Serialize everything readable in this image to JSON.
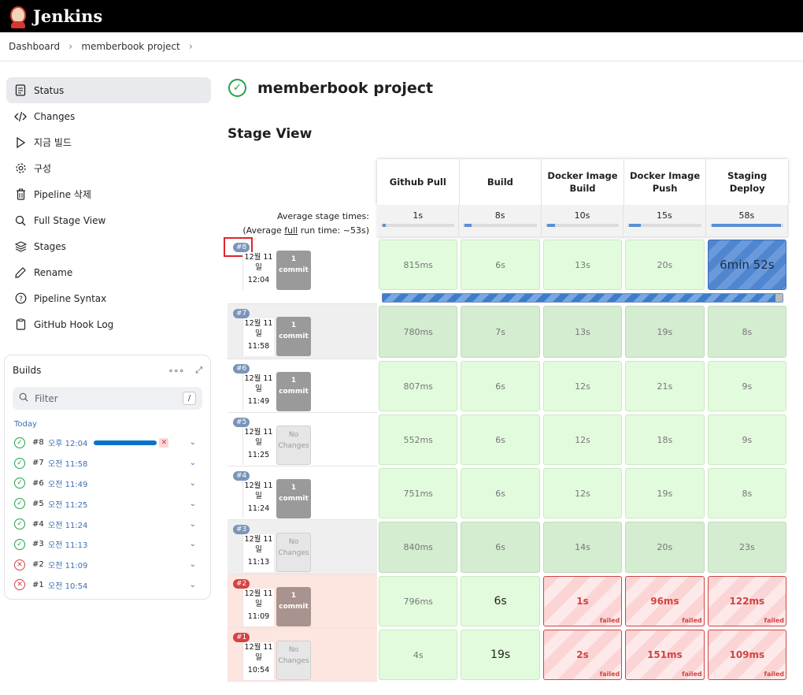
{
  "header": {
    "brand": "Jenkins"
  },
  "breadcrumb": [
    "Dashboard",
    "memberbook project"
  ],
  "sidebar": {
    "items": [
      {
        "label": "Status",
        "icon": "document-icon"
      },
      {
        "label": "Changes",
        "icon": "code-icon"
      },
      {
        "label": "지금 빌드",
        "icon": "play-icon"
      },
      {
        "label": "구성",
        "icon": "gear-icon"
      },
      {
        "label": "Pipeline 삭제",
        "icon": "trash-icon"
      },
      {
        "label": "Full Stage View",
        "icon": "search-icon"
      },
      {
        "label": "Stages",
        "icon": "layers-icon"
      },
      {
        "label": "Rename",
        "icon": "pencil-icon"
      },
      {
        "label": "Pipeline Syntax",
        "icon": "help-icon"
      },
      {
        "label": "GitHub Hook Log",
        "icon": "clipboard-icon"
      }
    ]
  },
  "builds": {
    "title": "Builds",
    "filter_placeholder": "Filter",
    "filter_shortcut": "/",
    "group": "Today",
    "items": [
      {
        "num": "#8",
        "time": "오후 12:04",
        "status": "running"
      },
      {
        "num": "#7",
        "time": "오전 11:58",
        "status": "success"
      },
      {
        "num": "#6",
        "time": "오전 11:49",
        "status": "success"
      },
      {
        "num": "#5",
        "time": "오전 11:25",
        "status": "success"
      },
      {
        "num": "#4",
        "time": "오전 11:24",
        "status": "success"
      },
      {
        "num": "#3",
        "time": "오전 11:13",
        "status": "success"
      },
      {
        "num": "#2",
        "time": "오전 11:09",
        "status": "failed"
      },
      {
        "num": "#1",
        "time": "오전 10:54",
        "status": "failed"
      }
    ]
  },
  "main": {
    "title": "memberbook project",
    "stage_view_title": "Stage View",
    "avg_label_1": "Average stage times:",
    "avg_label_2a": "(Average ",
    "avg_label_2b": "full",
    "avg_label_2c": " run time: ~53s)",
    "stages": [
      {
        "name_1": "Github Pull",
        "name_2": "",
        "avg": "1s",
        "avg_fill": 0.02
      },
      {
        "name_1": "Build",
        "name_2": "",
        "avg": "8s",
        "avg_fill": 0.09
      },
      {
        "name_1": "Docker Image",
        "name_2": "Build",
        "avg": "10s",
        "avg_fill": 0.11
      },
      {
        "name_1": "Docker Image",
        "name_2": "Push",
        "avg": "15s",
        "avg_fill": 0.16
      },
      {
        "name_1": "Staging",
        "name_2": "Deploy",
        "avg": "58s",
        "avg_fill": 0.95
      }
    ],
    "runs": [
      {
        "id": "#8",
        "date_1": "12월 11",
        "date_2": "일",
        "time": "12:04",
        "commit_1": "1",
        "commit_2": "commit",
        "failed": false,
        "cells": [
          {
            "v": "815ms",
            "t": "ok"
          },
          {
            "v": "6s",
            "t": "ok"
          },
          {
            "v": "13s",
            "t": "ok"
          },
          {
            "v": "20s",
            "t": "ok"
          },
          {
            "v": "6min 52s",
            "t": "running"
          }
        ]
      },
      {
        "id": "#7",
        "date_1": "12월 11",
        "date_2": "일",
        "time": "11:58",
        "commit_1": "1",
        "commit_2": "commit",
        "failed": false,
        "cells": [
          {
            "v": "780ms",
            "t": "okdark"
          },
          {
            "v": "7s",
            "t": "okdark"
          },
          {
            "v": "13s",
            "t": "okdark"
          },
          {
            "v": "19s",
            "t": "okdark"
          },
          {
            "v": "8s",
            "t": "okdark"
          }
        ]
      },
      {
        "id": "#6",
        "date_1": "12월 11",
        "date_2": "일",
        "time": "11:49",
        "commit_1": "1",
        "commit_2": "commit",
        "failed": false,
        "cells": [
          {
            "v": "807ms",
            "t": "ok"
          },
          {
            "v": "6s",
            "t": "ok"
          },
          {
            "v": "12s",
            "t": "ok"
          },
          {
            "v": "21s",
            "t": "ok"
          },
          {
            "v": "9s",
            "t": "ok"
          }
        ]
      },
      {
        "id": "#5",
        "date_1": "12월 11",
        "date_2": "일",
        "time": "11:25",
        "commit_1": "No",
        "commit_2": "Changes",
        "failed": false,
        "cells": [
          {
            "v": "552ms",
            "t": "ok"
          },
          {
            "v": "6s",
            "t": "ok"
          },
          {
            "v": "12s",
            "t": "ok"
          },
          {
            "v": "18s",
            "t": "ok"
          },
          {
            "v": "9s",
            "t": "ok"
          }
        ]
      },
      {
        "id": "#4",
        "date_1": "12월 11",
        "date_2": "일",
        "time": "11:24",
        "commit_1": "1",
        "commit_2": "commit",
        "failed": false,
        "cells": [
          {
            "v": "751ms",
            "t": "ok"
          },
          {
            "v": "6s",
            "t": "ok"
          },
          {
            "v": "12s",
            "t": "ok"
          },
          {
            "v": "19s",
            "t": "ok"
          },
          {
            "v": "8s",
            "t": "ok"
          }
        ]
      },
      {
        "id": "#3",
        "date_1": "12월 11",
        "date_2": "일",
        "time": "11:13",
        "commit_1": "No",
        "commit_2": "Changes",
        "failed": false,
        "cells": [
          {
            "v": "840ms",
            "t": "okdark"
          },
          {
            "v": "6s",
            "t": "okdark"
          },
          {
            "v": "14s",
            "t": "okdark"
          },
          {
            "v": "20s",
            "t": "okdark"
          },
          {
            "v": "23s",
            "t": "okdark"
          }
        ]
      },
      {
        "id": "#2",
        "date_1": "12월 11",
        "date_2": "일",
        "time": "11:09",
        "commit_1": "1",
        "commit_2": "commit",
        "failed": true,
        "cells": [
          {
            "v": "796ms",
            "t": "ok"
          },
          {
            "v": "6s",
            "t": "okbig"
          },
          {
            "v": "1s",
            "t": "fail"
          },
          {
            "v": "96ms",
            "t": "fail"
          },
          {
            "v": "122ms",
            "t": "fail"
          }
        ]
      },
      {
        "id": "#1",
        "date_1": "12월 11",
        "date_2": "일",
        "time": "10:54",
        "commit_1": "No",
        "commit_2": "Changes",
        "failed": true,
        "cells": [
          {
            "v": "4s",
            "t": "ok"
          },
          {
            "v": "19s",
            "t": "okbig"
          },
          {
            "v": "2s",
            "t": "fail"
          },
          {
            "v": "151ms",
            "t": "fail"
          },
          {
            "v": "109ms",
            "t": "fail"
          }
        ]
      }
    ],
    "failed_label": "failed"
  }
}
